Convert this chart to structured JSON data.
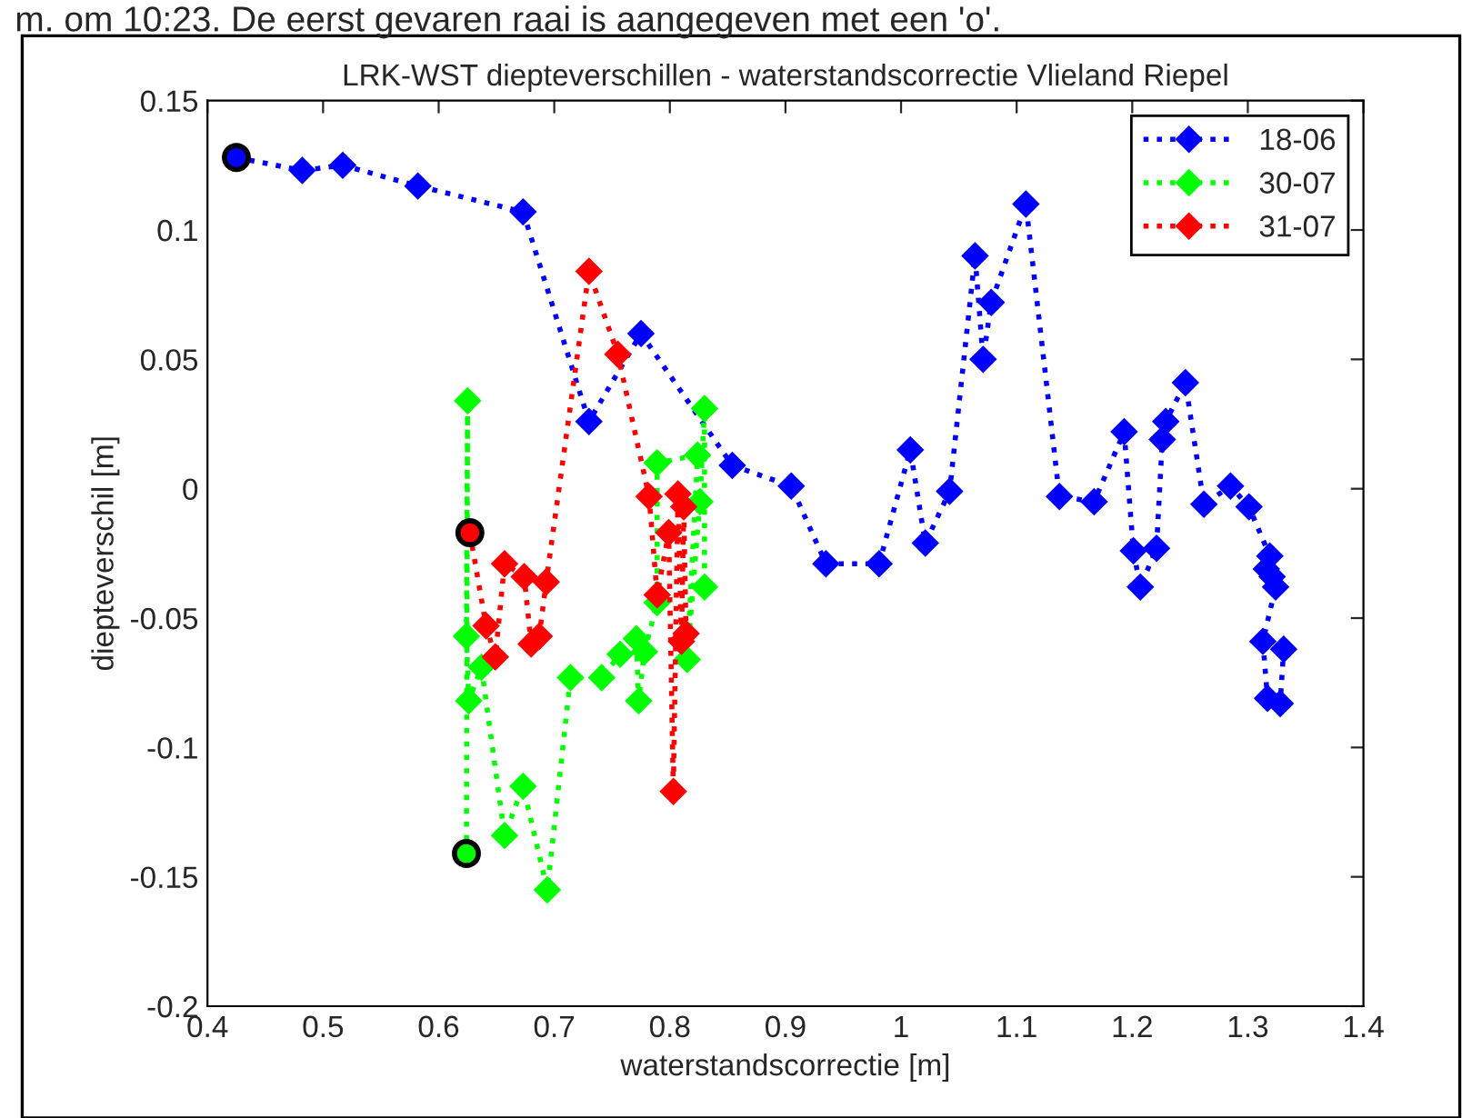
{
  "chart_data": {
    "type": "line",
    "title": "LRK-WST diepteverschillen - waterstandscorrectie Vlieland Riepel",
    "xlabel": "waterstandscorrectie [m]",
    "ylabel": "diepteverschil [m]",
    "annotations": [
      "m. om 10:23. De eerst gevaren raai is aangegeven met een 'o'."
    ],
    "xlim": [
      0.4,
      1.4
    ],
    "xticks": [
      0.4,
      0.5,
      0.6,
      0.7,
      0.8,
      0.9,
      1,
      1.1,
      1.2,
      1.3,
      1.4
    ],
    "ylim": [
      -0.2,
      0.15
    ],
    "yticks": [
      -0.2,
      -0.15,
      -0.1,
      -0.05,
      0,
      0.05,
      0.1,
      0.15
    ],
    "grid": false,
    "legend": "top right",
    "marker": "diamond",
    "line_style": "dotted",
    "series": [
      {
        "name": "18-06",
        "color": "#0000ff",
        "x": [
          0.425,
          0.482,
          0.517,
          0.582,
          0.673,
          0.73,
          0.775,
          0.854,
          0.905,
          0.935,
          0.981,
          1.008,
          1.021,
          1.042,
          1.064,
          1.071,
          1.078,
          1.108,
          1.137,
          1.167,
          1.193,
          1.201,
          1.207,
          1.221,
          1.226,
          1.229,
          1.246,
          1.262,
          1.285,
          1.301,
          1.319,
          1.316,
          1.321,
          1.324,
          1.313,
          1.317,
          1.328,
          1.331
        ],
        "values": [
          0.128,
          0.123,
          0.125,
          0.117,
          0.107,
          0.026,
          0.06,
          0.009,
          0.001,
          -0.029,
          -0.029,
          0.015,
          -0.021,
          -0.001,
          0.09,
          0.05,
          0.072,
          0.11,
          -0.003,
          -0.005,
          0.022,
          -0.024,
          -0.038,
          -0.023,
          0.019,
          0.026,
          0.041,
          -0.006,
          0.001,
          -0.007,
          -0.026,
          -0.031,
          -0.034,
          -0.038,
          -0.059,
          -0.081,
          -0.083,
          -0.062
        ]
      },
      {
        "name": "30-07",
        "color": "#00ff00",
        "x": [
          0.624,
          0.625,
          0.624,
          0.626,
          0.637,
          0.657,
          0.673,
          0.694,
          0.714,
          0.741,
          0.757,
          0.771,
          0.773,
          0.778,
          0.789,
          0.789,
          0.824,
          0.815,
          0.826,
          0.83,
          0.83
        ],
        "values": [
          -0.141,
          0.034,
          -0.057,
          -0.082,
          -0.069,
          -0.134,
          -0.115,
          -0.155,
          -0.073,
          -0.073,
          -0.064,
          -0.058,
          -0.082,
          -0.063,
          -0.044,
          0.01,
          0.013,
          -0.066,
          -0.005,
          0.031,
          -0.038
        ]
      },
      {
        "name": "31-07",
        "color": "#ff0000",
        "x": [
          0.627,
          0.641,
          0.649,
          0.657,
          0.674,
          0.68,
          0.687,
          0.693,
          0.73,
          0.755,
          0.782,
          0.789,
          0.799,
          0.803,
          0.807,
          0.81,
          0.812,
          0.814
        ],
        "values": [
          -0.017,
          -0.053,
          -0.065,
          -0.029,
          -0.034,
          -0.06,
          -0.057,
          -0.036,
          0.084,
          0.052,
          -0.003,
          -0.041,
          -0.017,
          -0.117,
          -0.002,
          -0.059,
          -0.007,
          -0.056
        ]
      },
      {
        "type": "scatter",
        "marker": "circle",
        "x": [
          0.425,
          0.624,
          0.627
        ],
        "values": [
          0.128,
          -0.141,
          -0.017
        ],
        "colors": [
          "#0000ff",
          "#00ff00",
          "#ff0000"
        ]
      }
    ]
  }
}
